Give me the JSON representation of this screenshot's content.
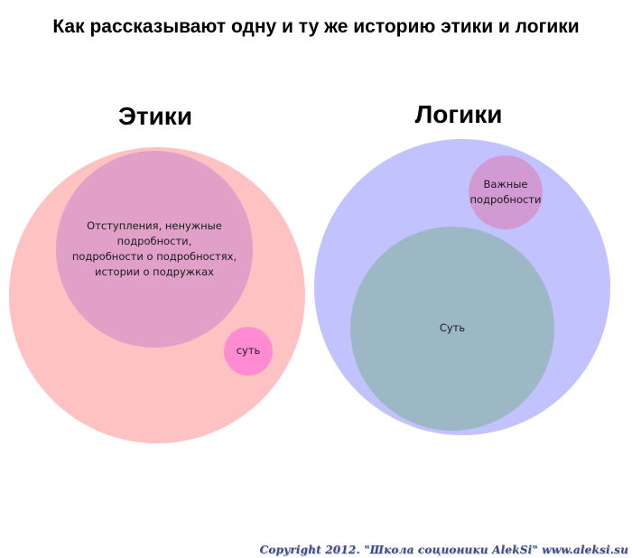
{
  "title": "Как рассказывают одну и ту же историю этики и логики",
  "ethics": {
    "heading": "Этики",
    "outer_color": "#ffc2c2",
    "details_color": "#e0a0c8",
    "details_lines": [
      "Отступления, ненужные",
      "подробности,",
      "подробности о подробностях,",
      "истории о подружках"
    ],
    "essence_color": "#ff8cd2",
    "essence_label": "суть"
  },
  "logic": {
    "heading": "Логики",
    "outer_color": "#c2c2ff",
    "details_color": "#d29ad2",
    "details_lines": [
      "Важные",
      "подробности"
    ],
    "essence_color": "#9cb8c4",
    "essence_label": "Суть"
  },
  "copyright": "Copyright 2012. \"Школа соционики AlekSi\" www.aleksi.su"
}
